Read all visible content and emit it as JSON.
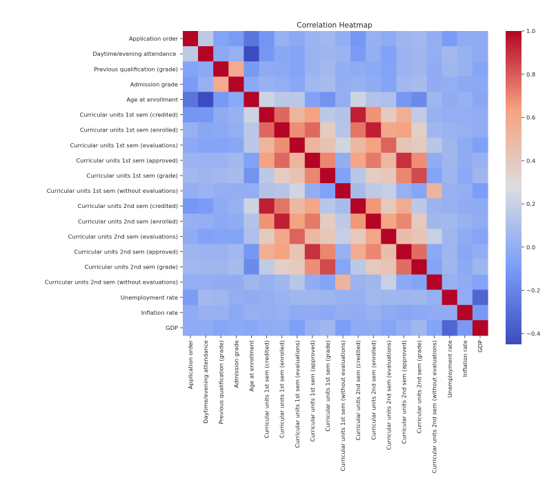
{
  "chart_data": {
    "type": "heatmap",
    "title": "Correlation Heatmap",
    "xlabel": "",
    "ylabel": "",
    "colormap": "coolwarm",
    "colorscale": {
      "min": -0.45,
      "max": 1.0,
      "ticks": [
        "1.0",
        "0.8",
        "0.6",
        "0.4",
        "0.2",
        "0.0",
        "−0.2",
        "−0.4"
      ],
      "tick_values": [
        1.0,
        0.8,
        0.6,
        0.4,
        0.2,
        0.0,
        -0.2,
        -0.4
      ]
    },
    "labels": [
      "Application order",
      "Daytime/evening attendance",
      "Previous qualification (grade)",
      "Admission grade",
      "Age at enrollment",
      "Curricular units 1st sem (credited)",
      "Curricular units 1st sem (enrolled)",
      "Curricular units 1st sem (evaluations)",
      "Curricular units 1st sem (approved)",
      "Curricular units 1st sem (grade)",
      "Curricular units 1st sem (without evaluations)",
      "Curricular units 2nd sem (credited)",
      "Curricular units 2nd sem (enrolled)",
      "Curricular units 2nd sem (evaluations)",
      "Curricular units 2nd sem (approved)",
      "Curricular units 2nd sem (grade)",
      "Curricular units 2nd sem (without evaluations)",
      "Unemployment rate",
      "Inflation rate",
      "GDP"
    ],
    "y_tick_labels": [
      "Application order",
      "Daytime/evening attendance ",
      "Previous qualification (grade)",
      "Admission grade",
      "Age at enrollment",
      "Curricular units 1st sem (credited)",
      "Curricular units 1st sem (enrolled)",
      "Curricular units 1st sem (evaluations)",
      "Curricular units 1st sem (approved)",
      "Curricular units 1st sem (grade)",
      "Curricular units 1st sem (without evaluations)",
      "Curricular units 2nd sem (credited)",
      "Curricular units 2nd sem (enrolled)",
      "Curricular units 2nd sem (evaluations)",
      "Curricular units 2nd sem (approved)",
      "Curricular units 2nd sem (grade)",
      "Curricular units 2nd sem (without evaluations)",
      "Unemployment rate",
      "Inflation rate",
      "GDP"
    ],
    "matrix": [
      [
        1.0,
        0.16,
        -0.06,
        -0.1,
        -0.27,
        -0.13,
        0.01,
        -0.03,
        0.03,
        0.06,
        0.0,
        -0.12,
        0.01,
        -0.02,
        0.04,
        0.06,
        0.0,
        -0.1,
        -0.02,
        -0.02
      ],
      [
        0.16,
        1.0,
        -0.03,
        0.01,
        -0.46,
        -0.12,
        -0.04,
        -0.06,
        0.03,
        0.04,
        0.03,
        -0.1,
        0.0,
        -0.07,
        0.03,
        0.05,
        0.0,
        0.06,
        0.02,
        -0.02
      ],
      [
        -0.06,
        -0.03,
        1.0,
        0.58,
        -0.11,
        -0.02,
        -0.03,
        -0.06,
        0.03,
        0.06,
        0.0,
        -0.02,
        -0.03,
        -0.06,
        0.03,
        0.05,
        -0.01,
        0.05,
        0.02,
        -0.05
      ],
      [
        -0.1,
        0.01,
        0.58,
        1.0,
        -0.03,
        0.02,
        0.0,
        -0.04,
        0.06,
        0.08,
        0.0,
        0.02,
        -0.01,
        -0.06,
        0.06,
        0.08,
        -0.01,
        0.0,
        -0.03,
        -0.03
      ],
      [
        -0.27,
        -0.46,
        -0.11,
        -0.03,
        1.0,
        0.22,
        0.15,
        0.15,
        -0.07,
        -0.14,
        0.0,
        0.22,
        0.12,
        0.1,
        -0.12,
        -0.18,
        0.05,
        -0.01,
        0.01,
        -0.04
      ],
      [
        -0.13,
        -0.12,
        -0.02,
        0.02,
        0.22,
        1.0,
        0.77,
        0.52,
        0.63,
        0.15,
        0.12,
        0.94,
        0.67,
        0.39,
        0.56,
        0.17,
        0.02,
        0.0,
        0.0,
        -0.01
      ],
      [
        0.01,
        -0.04,
        -0.03,
        0.0,
        0.15,
        0.77,
        1.0,
        0.68,
        0.77,
        0.38,
        0.13,
        0.74,
        0.94,
        0.6,
        0.63,
        0.36,
        0.05,
        0.03,
        0.01,
        -0.01
      ],
      [
        -0.03,
        -0.06,
        -0.06,
        -0.04,
        0.15,
        0.52,
        0.68,
        1.0,
        0.52,
        0.44,
        0.23,
        0.5,
        0.63,
        0.78,
        0.43,
        0.39,
        0.14,
        0.05,
        -0.02,
        -0.08
      ],
      [
        0.03,
        0.03,
        0.03,
        0.06,
        -0.07,
        0.63,
        0.77,
        0.52,
        1.0,
        0.7,
        0.0,
        0.61,
        0.73,
        0.5,
        0.9,
        0.68,
        -0.01,
        0.05,
        -0.01,
        0.02
      ],
      [
        0.06,
        0.04,
        0.06,
        0.08,
        -0.14,
        0.15,
        0.38,
        0.44,
        0.7,
        1.0,
        -0.07,
        0.14,
        0.38,
        0.41,
        0.7,
        0.84,
        -0.06,
        0.04,
        -0.03,
        0.05
      ],
      [
        0.0,
        0.03,
        0.0,
        0.0,
        0.0,
        0.12,
        0.13,
        0.23,
        0.0,
        -0.07,
        1.0,
        0.08,
        0.16,
        0.19,
        0.01,
        -0.05,
        0.53,
        0.02,
        0.0,
        -0.09
      ],
      [
        -0.12,
        -0.1,
        -0.02,
        0.02,
        0.22,
        0.94,
        0.74,
        0.5,
        0.61,
        0.14,
        0.08,
        1.0,
        0.66,
        0.4,
        0.58,
        0.15,
        0.03,
        0.01,
        -0.01,
        -0.02
      ],
      [
        0.01,
        0.0,
        -0.03,
        -0.01,
        0.12,
        0.67,
        0.94,
        0.63,
        0.73,
        0.38,
        0.16,
        0.66,
        1.0,
        0.61,
        0.7,
        0.4,
        0.05,
        0.06,
        0.02,
        -0.01
      ],
      [
        -0.02,
        -0.07,
        -0.06,
        -0.06,
        0.1,
        0.39,
        0.6,
        0.78,
        0.5,
        0.41,
        0.19,
        0.4,
        0.61,
        1.0,
        0.47,
        0.43,
        0.2,
        0.05,
        -0.02,
        -0.05
      ],
      [
        0.04,
        0.03,
        0.03,
        0.06,
        -0.12,
        0.56,
        0.63,
        0.43,
        0.9,
        0.7,
        0.01,
        0.58,
        0.7,
        0.47,
        1.0,
        0.76,
        -0.03,
        0.04,
        -0.04,
        0.0
      ],
      [
        0.06,
        0.05,
        0.05,
        0.08,
        -0.18,
        0.17,
        0.36,
        0.39,
        0.68,
        0.84,
        -0.05,
        0.15,
        0.4,
        0.43,
        0.76,
        1.0,
        -0.06,
        0.05,
        -0.03,
        0.05
      ],
      [
        0.0,
        0.0,
        -0.01,
        -0.01,
        0.05,
        0.02,
        0.05,
        0.14,
        -0.01,
        -0.06,
        0.53,
        0.03,
        0.05,
        0.2,
        -0.03,
        -0.06,
        1.0,
        0.01,
        -0.01,
        -0.06
      ],
      [
        -0.1,
        0.06,
        0.05,
        0.0,
        -0.01,
        0.0,
        0.03,
        0.05,
        0.05,
        0.04,
        0.02,
        0.01,
        0.06,
        0.05,
        0.04,
        0.05,
        0.01,
        1.0,
        -0.01,
        -0.34
      ],
      [
        -0.02,
        0.02,
        0.02,
        -0.03,
        0.01,
        0.0,
        0.01,
        -0.02,
        -0.01,
        -0.03,
        0.0,
        -0.01,
        0.02,
        -0.02,
        -0.04,
        -0.03,
        -0.01,
        -0.01,
        1.0,
        -0.11
      ],
      [
        -0.02,
        -0.02,
        -0.05,
        -0.03,
        -0.04,
        -0.01,
        -0.01,
        -0.08,
        0.02,
        0.05,
        -0.09,
        -0.02,
        -0.01,
        -0.05,
        0.0,
        0.05,
        -0.06,
        -0.34,
        -0.11,
        1.0
      ]
    ]
  }
}
